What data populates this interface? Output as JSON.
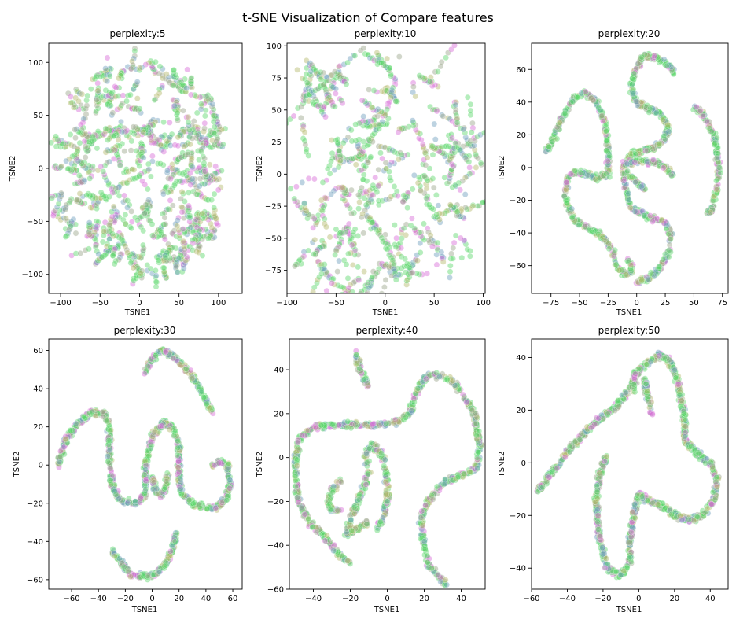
{
  "figure": {
    "title": "t-SNE Visualization of Compare features"
  },
  "colors": {
    "green": "#5ad86a",
    "magenta": "#d66ad6",
    "olive": "#b3b86a",
    "steel": "#6d9dbd",
    "grey": "#9aa58a"
  },
  "chart_data": [
    {
      "type": "scatter",
      "title": "perplexity:5",
      "xlabel": "TSNE1",
      "ylabel": "TSNE2",
      "xlim": [
        -115,
        130
      ],
      "ylim": [
        -118,
        118
      ],
      "xticks": [
        -100,
        -50,
        0,
        50,
        100
      ],
      "yticks": [
        -100,
        -50,
        0,
        50,
        100
      ],
      "series": [
        {
          "points": []
        }
      ]
    },
    {
      "type": "scatter",
      "title": "perplexity:10",
      "xlabel": "TSNE1",
      "ylabel": "TSNE2",
      "xlim": [
        -100,
        102
      ],
      "ylim": [
        -93,
        102
      ],
      "xticks": [
        -100,
        -50,
        0,
        50,
        100
      ],
      "yticks": [
        -75,
        -50,
        -25,
        0,
        25,
        50,
        75,
        100
      ],
      "series": [
        {
          "points": []
        }
      ]
    },
    {
      "type": "scatter",
      "title": "perplexity:20",
      "xlabel": "TSNE1",
      "ylabel": "TSNE2",
      "xlim": [
        -92,
        80
      ],
      "ylim": [
        -77,
        76
      ],
      "xticks": [
        -75,
        -50,
        -25,
        0,
        25,
        50,
        75
      ],
      "yticks": [
        -60,
        -40,
        -20,
        0,
        20,
        40,
        60
      ],
      "series": [
        {
          "points": []
        }
      ]
    },
    {
      "type": "scatter",
      "title": "perplexity:30",
      "xlabel": "TSNE1",
      "ylabel": "TSNE2",
      "xlim": [
        -77,
        67
      ],
      "ylim": [
        -65,
        66
      ],
      "xticks": [
        -60,
        -40,
        -20,
        0,
        20,
        40,
        60
      ],
      "yticks": [
        -60,
        -40,
        -20,
        0,
        20,
        40,
        60
      ],
      "series": [
        {
          "points": []
        }
      ]
    },
    {
      "type": "scatter",
      "title": "perplexity:40",
      "xlabel": "TSNE1",
      "ylabel": "TSNE2",
      "xlim": [
        -53,
        53
      ],
      "ylim": [
        -60,
        54
      ],
      "xticks": [
        -40,
        -20,
        0,
        20,
        40
      ],
      "yticks": [
        -60,
        -40,
        -20,
        0,
        20,
        40
      ],
      "series": [
        {
          "points": []
        }
      ]
    },
    {
      "type": "scatter",
      "title": "perplexity:50",
      "xlabel": "TSNE1",
      "ylabel": "TSNE2",
      "xlim": [
        -60,
        50
      ],
      "ylim": [
        -48,
        47
      ],
      "xticks": [
        -60,
        -40,
        -20,
        0,
        20,
        40
      ],
      "yticks": [
        -40,
        -20,
        0,
        20,
        40
      ],
      "series": [
        {
          "points": []
        }
      ]
    }
  ]
}
